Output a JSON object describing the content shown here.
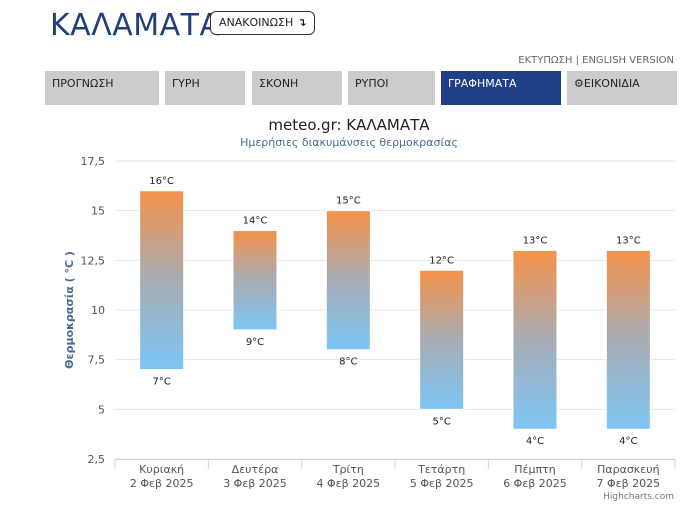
{
  "header": {
    "city": "ΚΑΛΑΜΑΤΑ",
    "announce_label": "ΑΝΑΚΟΙΝΩΣΗ",
    "announce_icon": "arrow-down-return-icon",
    "print_link": "ΕΚΤΥΠΩΣΗ",
    "separator": "|",
    "english_link": "ENGLISH VERSION"
  },
  "tabs": [
    {
      "label": "ΠΡΟΓΝΩΣΗ",
      "active": false
    },
    {
      "label": "ΓΥΡΗ",
      "active": false
    },
    {
      "label": "ΣΚΟΝΗ",
      "active": false
    },
    {
      "label": "ΡΥΠΟΙ",
      "active": false
    },
    {
      "label": "ΓΡΑΦΗΜΑΤΑ",
      "active": true
    },
    {
      "label": "ΕΙΚΟΝΙΔΙΑ",
      "active": false,
      "icon": "gear-icon"
    }
  ],
  "colors": {
    "brand": "#1f3f7a",
    "active_tab": "#1f3f87",
    "tab": "#cccccc",
    "bar_top": "#f5924a",
    "bar_bottom": "#7cc6f5",
    "axis_title": "#4c6a8f"
  },
  "chart_data": {
    "type": "bar",
    "subtype": "columnrange",
    "title": "meteo.gr: ΚΑΛΑΜΑΤΑ",
    "subtitle": "Ημερήσιες διακυμάνσεις θερμοκρασίας",
    "ylabel": "Θερμοκρασία ( °C )",
    "xlabel": "",
    "ylim": [
      2.5,
      17.5
    ],
    "yticks": [
      "2,5",
      "5",
      "7,5",
      "10",
      "12,5",
      "15",
      "17,5"
    ],
    "categories": [
      [
        "Κυριακή",
        "2 Φεβ 2025"
      ],
      [
        "Δευτέρα",
        "3 Φεβ 2025"
      ],
      [
        "Τρίτη",
        "4 Φεβ 2025"
      ],
      [
        "Τετάρτη",
        "5 Φεβ 2025"
      ],
      [
        "Πέμπτη",
        "6 Φεβ 2025"
      ],
      [
        "Παρασκευή",
        "7 Φεβ 2025"
      ]
    ],
    "series": [
      {
        "low": [
          7,
          9,
          8,
          5,
          4,
          4
        ],
        "high": [
          16,
          14,
          15,
          12,
          13,
          13
        ]
      }
    ],
    "low_labels": [
      "7°C",
      "9°C",
      "8°C",
      "5°C",
      "4°C",
      "4°C"
    ],
    "high_labels": [
      "16°C",
      "14°C",
      "15°C",
      "12°C",
      "13°C",
      "13°C"
    ],
    "grid": true,
    "legend": "none"
  },
  "credits": "Highcharts.com"
}
